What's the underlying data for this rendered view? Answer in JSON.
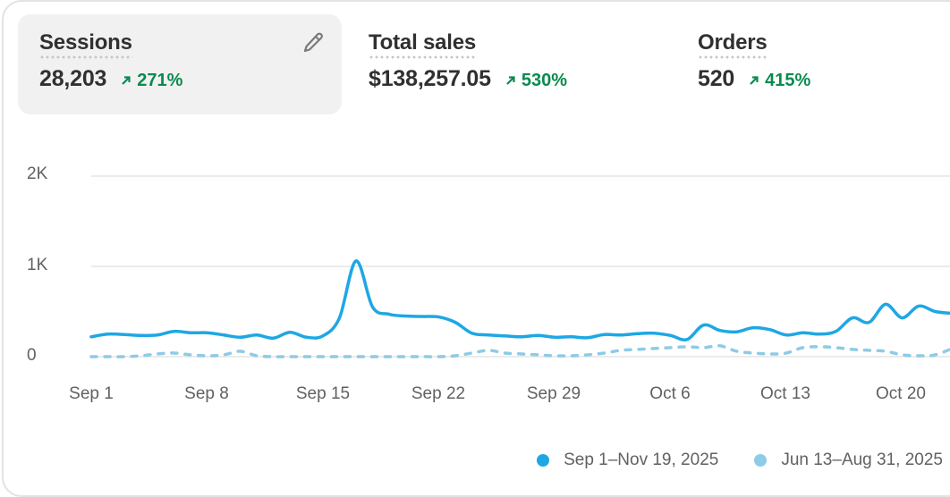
{
  "metrics": [
    {
      "label": "Sessions",
      "value": "28,203",
      "change": "271%",
      "direction": "up",
      "active": true
    },
    {
      "label": "Total sales",
      "value": "$138,257.05",
      "change": "530%",
      "direction": "up",
      "active": false
    },
    {
      "label": "Orders",
      "value": "520",
      "change": "415%",
      "direction": "up",
      "active": false
    }
  ],
  "icons": {
    "edit": "pencil-icon",
    "trend": "arrow-up-right-icon"
  },
  "colors": {
    "current": "#1ea7e4",
    "previous": "#8ecbe6",
    "positive": "#0a8a4f",
    "grid": "#ebebeb",
    "active_card": "#f1f1f1"
  },
  "chart": {
    "y_ticks": [
      "2K",
      "1K",
      "0"
    ],
    "x_ticks": [
      "Sep 1",
      "Sep 8",
      "Sep 15",
      "Sep 22",
      "Sep 29",
      "Oct 6",
      "Oct 13",
      "Oct 20"
    ],
    "legend": [
      {
        "label": "Sep 1–Nov 19, 2025",
        "color": "#1ea7e4"
      },
      {
        "label": "Jun 13–Aug 31, 2025",
        "color": "#8ecbe6"
      }
    ]
  },
  "chart_data": {
    "type": "line",
    "title": "Sessions",
    "xlabel": "",
    "ylabel": "",
    "ylim": [
      0,
      2000
    ],
    "grid": true,
    "legend_position": "bottom-right",
    "x": [
      "Sep 1",
      "Sep 2",
      "Sep 3",
      "Sep 4",
      "Sep 5",
      "Sep 6",
      "Sep 7",
      "Sep 8",
      "Sep 9",
      "Sep 10",
      "Sep 11",
      "Sep 12",
      "Sep 13",
      "Sep 14",
      "Sep 15",
      "Sep 16",
      "Sep 17",
      "Sep 18",
      "Sep 19",
      "Sep 20",
      "Sep 21",
      "Sep 22",
      "Sep 23",
      "Sep 24",
      "Sep 25",
      "Sep 26",
      "Sep 27",
      "Sep 28",
      "Sep 29",
      "Sep 30",
      "Oct 1",
      "Oct 2",
      "Oct 3",
      "Oct 4",
      "Oct 5",
      "Oct 6",
      "Oct 7",
      "Oct 8",
      "Oct 9",
      "Oct 10",
      "Oct 11",
      "Oct 12",
      "Oct 13",
      "Oct 14",
      "Oct 15",
      "Oct 16",
      "Oct 17",
      "Oct 18",
      "Oct 19",
      "Oct 20",
      "Oct 21",
      "Oct 22",
      "Oct 23"
    ],
    "series": [
      {
        "name": "Sep 1–Nov 19, 2025",
        "style": "solid",
        "values": [
          220,
          250,
          245,
          235,
          240,
          280,
          265,
          265,
          240,
          215,
          240,
          205,
          270,
          215,
          230,
          430,
          1060,
          550,
          470,
          450,
          445,
          440,
          380,
          260,
          240,
          230,
          220,
          235,
          215,
          220,
          210,
          245,
          240,
          255,
          260,
          235,
          190,
          350,
          290,
          275,
          320,
          300,
          240,
          265,
          250,
          280,
          430,
          380,
          580,
          430,
          560,
          500,
          480
        ]
      },
      {
        "name": "Jun 13–Aug 31, 2025",
        "style": "dashed",
        "values": [
          0,
          0,
          0,
          10,
          30,
          40,
          20,
          10,
          20,
          60,
          10,
          0,
          0,
          0,
          0,
          0,
          0,
          0,
          0,
          0,
          0,
          0,
          10,
          40,
          70,
          40,
          30,
          20,
          10,
          10,
          20,
          40,
          70,
          80,
          90,
          100,
          110,
          100,
          120,
          60,
          40,
          30,
          40,
          100,
          110,
          100,
          80,
          70,
          60,
          20,
          10,
          20,
          90
        ]
      }
    ]
  }
}
